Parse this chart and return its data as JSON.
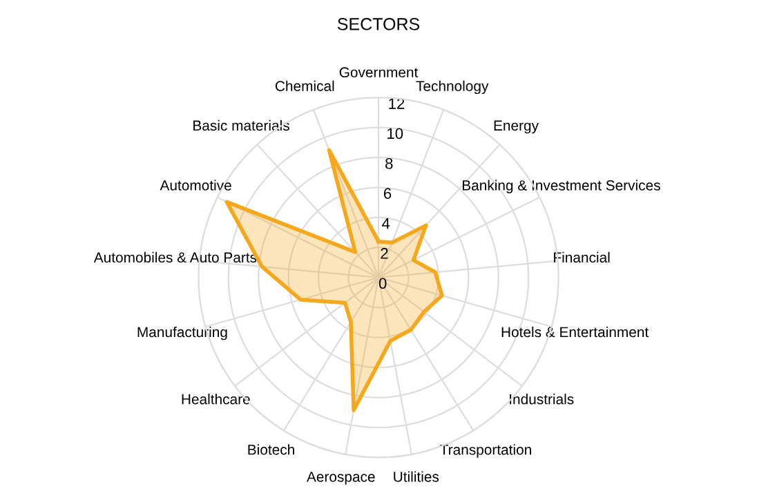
{
  "chart_data": {
    "type": "radar",
    "title": "SECTORS",
    "categories": [
      "Government",
      "Technology",
      "Energy",
      "Banking & Investment Services",
      "Financial",
      "Hotels & Entertainment",
      "Industrials",
      "Transportation",
      "Utilities",
      "Aerospace",
      "Biotech",
      "Healthcare",
      "Manufacturing",
      "Automobiles & Auto Parts",
      "Automotive",
      "Basic materials",
      "Chemical"
    ],
    "series": [
      {
        "color": "#f5a81c",
        "values": [
          2.4,
          2.5,
          4.7,
          2.6,
          3.8,
          4.4,
          3.8,
          4.1,
          4.3,
          9.0,
          3.5,
          2.8,
          5.4,
          7.8,
          11.3,
          2.3,
          9.1
        ]
      }
    ],
    "ylim": [
      0,
      12
    ],
    "yticks": [
      0,
      2,
      4,
      6,
      8,
      10,
      12
    ],
    "grid": true,
    "marker": "none",
    "line_style": "solid"
  }
}
